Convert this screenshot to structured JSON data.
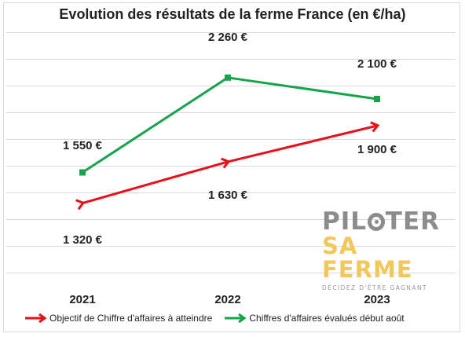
{
  "chart_data": {
    "type": "line",
    "title": "Evolution des résultats de la ferme France (en €/ha)",
    "categories": [
      "2021",
      "2022",
      "2023"
    ],
    "series": [
      {
        "name": "Objectif de Chiffre d'affaires à atteindre",
        "color": "#e8111a",
        "marker": "arrow",
        "values": [
          1320,
          1630,
          1900
        ],
        "labels": [
          "1 320 €",
          "1 630 €",
          "1 900 €"
        ]
      },
      {
        "name": "Chiffres d'affaires évalués début août",
        "color": "#16a44a",
        "marker": "square",
        "values": [
          1550,
          2260,
          2100
        ],
        "labels": [
          "1 550 €",
          "2 260 €",
          "2 100 €"
        ]
      }
    ],
    "ylim": [
      800,
      2600
    ],
    "y_gridline_step": 200,
    "grid": true,
    "y_tick_labels_shown": false,
    "legend_position": "bottom",
    "xlabel": "",
    "ylabel": ""
  },
  "logo": {
    "line1_a": "PIL",
    "line1_b": "TER",
    "line2": "SA FERME",
    "line3": "DÉCIDEZ D'ÊTRE GAGNANT"
  }
}
